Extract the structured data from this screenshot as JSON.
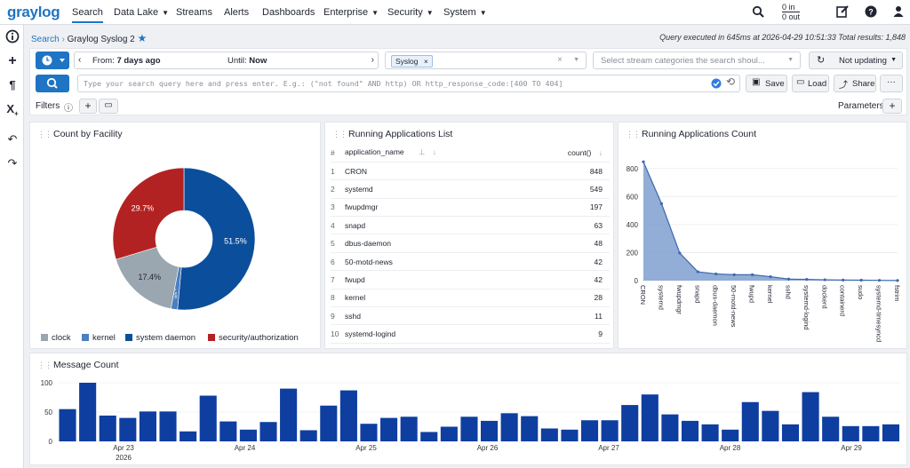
{
  "app": {
    "logo": "graylog"
  },
  "nav": {
    "search": "Search",
    "data_lake": "Data Lake",
    "streams": "Streams",
    "alerts": "Alerts",
    "dashboards": "Dashboards",
    "enterprise": "Enterprise",
    "security": "Security",
    "system": "System",
    "throughput_in": "0 in",
    "throughput_out": "0 out"
  },
  "breadcrumb": {
    "root": "Search",
    "current": "Graylog Syslog 2"
  },
  "query_info": "Query executed in 645ms at 2026-04-29 10:51:33 Total results: 1,848",
  "toolbar": {
    "from_label": "From:",
    "from_value": "7 days ago",
    "until_label": "Until:",
    "until_value": "Now",
    "stream_chip": "Syslog",
    "categories_placeholder": "Select stream categories the search shoul...",
    "refresh": "Not updating",
    "query_placeholder": "Type your search query here and press enter. E.g.: (\"not found\" AND http) OR http_response_code:[400 TO 404]",
    "save": "Save",
    "load": "Load",
    "share": "Share",
    "filters": "Filters",
    "parameters": "Parameters"
  },
  "panels": {
    "facility": {
      "title": "Count by Facility"
    },
    "apps": {
      "title": "Running Applications List",
      "col_app": "application_name",
      "col_count": "count()"
    },
    "apps_count": {
      "title": "Running Applications Count"
    },
    "messages": {
      "title": "Message Count"
    }
  },
  "colors": {
    "accent": "#1f74c4",
    "clock": "#9aa6b0",
    "kernel": "#4a7fc1",
    "system_daemon": "#0b4f9c",
    "security": "#b32222",
    "bar": "#0f3ea1"
  },
  "chart_data": [
    {
      "type": "pie",
      "title": "Count by Facility",
      "labels": [
        "system daemon",
        "kernel",
        "clock",
        "security/authorization"
      ],
      "values": [
        51.5,
        1.5,
        17.4,
        29.7
      ],
      "slice_labels": [
        "51.5%",
        "1.5%",
        "17.4%",
        "29.7%"
      ],
      "legend": [
        "clock",
        "kernel",
        "system daemon",
        "security/authorization"
      ],
      "legend_position": "bottom"
    },
    {
      "type": "table",
      "title": "Running Applications List",
      "rows": [
        [
          "1",
          "CRON",
          "848"
        ],
        [
          "2",
          "systemd",
          "549"
        ],
        [
          "3",
          "fwupdmgr",
          "197"
        ],
        [
          "4",
          "snapd",
          "63"
        ],
        [
          "5",
          "dbus-daemon",
          "48"
        ],
        [
          "6",
          "50-motd-news",
          "42"
        ],
        [
          "7",
          "fwupd",
          "42"
        ],
        [
          "8",
          "kernel",
          "28"
        ],
        [
          "9",
          "sshd",
          "11"
        ],
        [
          "10",
          "systemd-logind",
          "9"
        ]
      ]
    },
    {
      "type": "area",
      "title": "Running Applications Count",
      "categories": [
        "CRON",
        "systemd",
        "fwupdmgr",
        "snapd",
        "dbus-daemon",
        "50-motd-news",
        "fwupd",
        "kernel",
        "sshd",
        "systemd-logind",
        "dockerd",
        "containerd",
        "sudo",
        "systemd-timesyncd",
        "fstrim"
      ],
      "values": [
        848,
        549,
        197,
        63,
        48,
        42,
        42,
        28,
        11,
        9,
        6,
        4,
        3,
        2,
        1
      ],
      "ylim": [
        0,
        900
      ],
      "yticks": [
        0,
        200,
        400,
        600,
        800
      ]
    },
    {
      "type": "bar",
      "title": "Message Count",
      "values": [
        55,
        100,
        44,
        40,
        51,
        51,
        17,
        78,
        34,
        20,
        33,
        90,
        19,
        61,
        87,
        30,
        40,
        42,
        16,
        25,
        42,
        35,
        48,
        43,
        22,
        20,
        36,
        36,
        62,
        80,
        46,
        35,
        29,
        20,
        67,
        52,
        29,
        84,
        42,
        26,
        26,
        29
      ],
      "x_ticks": [
        "Apr 23",
        "Apr 24",
        "Apr 25",
        "Apr 26",
        "Apr 27",
        "Apr 28",
        "Apr 29"
      ],
      "x_sublabel": "2026",
      "yticks": [
        0,
        50,
        100
      ],
      "ylim": [
        0,
        100
      ]
    }
  ]
}
